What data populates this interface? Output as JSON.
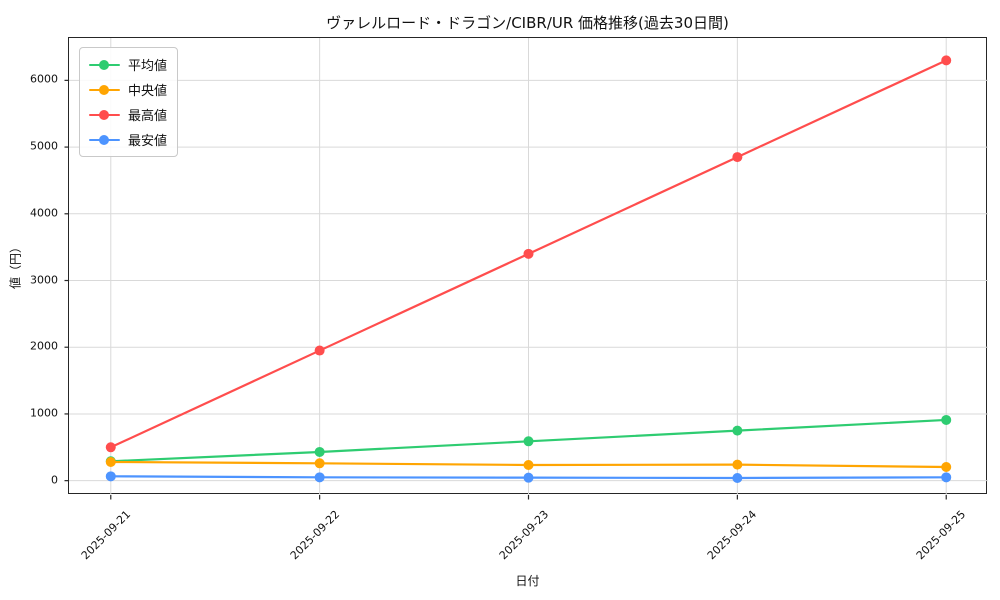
{
  "title": "ヴァレルロード・ドラゴン/CIBR/UR 価格推移(過去30日間)",
  "chart_data": {
    "type": "line",
    "title": "ヴァレルロード・ドラゴン/CIBR/UR 価格推移(過去30日間)",
    "xlabel": "日付",
    "ylabel": "値（円）",
    "categories": [
      "2025-09-21",
      "2025-09-22",
      "2025-09-23",
      "2025-09-24",
      "2025-09-25"
    ],
    "xlim": [
      -0.2,
      4.2
    ],
    "ylim": [
      -215,
      6635
    ],
    "yticks": [
      0,
      1000,
      2000,
      3000,
      4000,
      5000,
      6000
    ],
    "grid": true,
    "grid_color": "#d9d9d9",
    "spine_color": "#262626",
    "background_color": "#ffffff",
    "legend_position": "upper-left",
    "marker": "circle",
    "series": [
      {
        "name": "平均値",
        "color": "#2ecc71",
        "values": [
          290,
          430,
          590,
          750,
          910
        ]
      },
      {
        "name": "中央値",
        "color": "#ffa502",
        "values": [
          280,
          260,
          235,
          240,
          205
        ]
      },
      {
        "name": "最高値",
        "color": "#ff4d4d",
        "values": [
          500,
          1950,
          3400,
          4850,
          6300
        ]
      },
      {
        "name": "最安値",
        "color": "#4d94ff",
        "values": [
          65,
          50,
          45,
          40,
          50
        ]
      }
    ]
  }
}
